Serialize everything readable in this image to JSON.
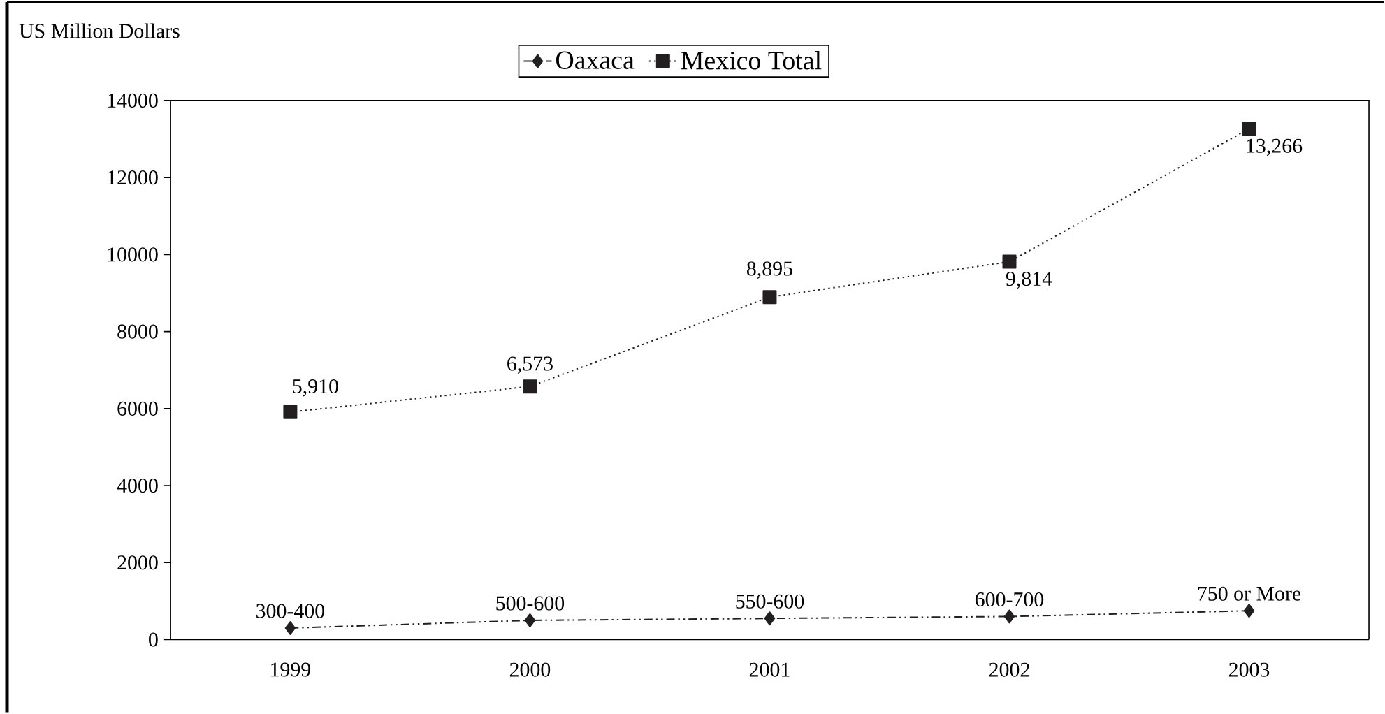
{
  "chart_data": {
    "type": "line",
    "ylabel": "US Million Dollars",
    "categories": [
      "1999",
      "2000",
      "2001",
      "2002",
      "2003"
    ],
    "series": [
      {
        "name": "Oaxaca",
        "color": "#231f20",
        "values": [
          300,
          500,
          550,
          600,
          750
        ],
        "value_labels": [
          "300-400",
          "500-600",
          "550-600",
          "600-700",
          "750 or More"
        ],
        "marker": "diamond",
        "line_style": "dashed"
      },
      {
        "name": "Mexico Total",
        "color": "#231f20",
        "values": [
          5910,
          6573,
          8895,
          9814,
          13266
        ],
        "value_labels": [
          "5,910",
          "6,573",
          "8,895",
          "9,814",
          "13,266"
        ],
        "marker": "square",
        "line_style": "dotted"
      }
    ],
    "ylim": [
      0,
      14000
    ],
    "yticks": [
      0,
      2000,
      4000,
      6000,
      8000,
      10000,
      12000,
      14000
    ],
    "grid": false,
    "legend": "top"
  }
}
